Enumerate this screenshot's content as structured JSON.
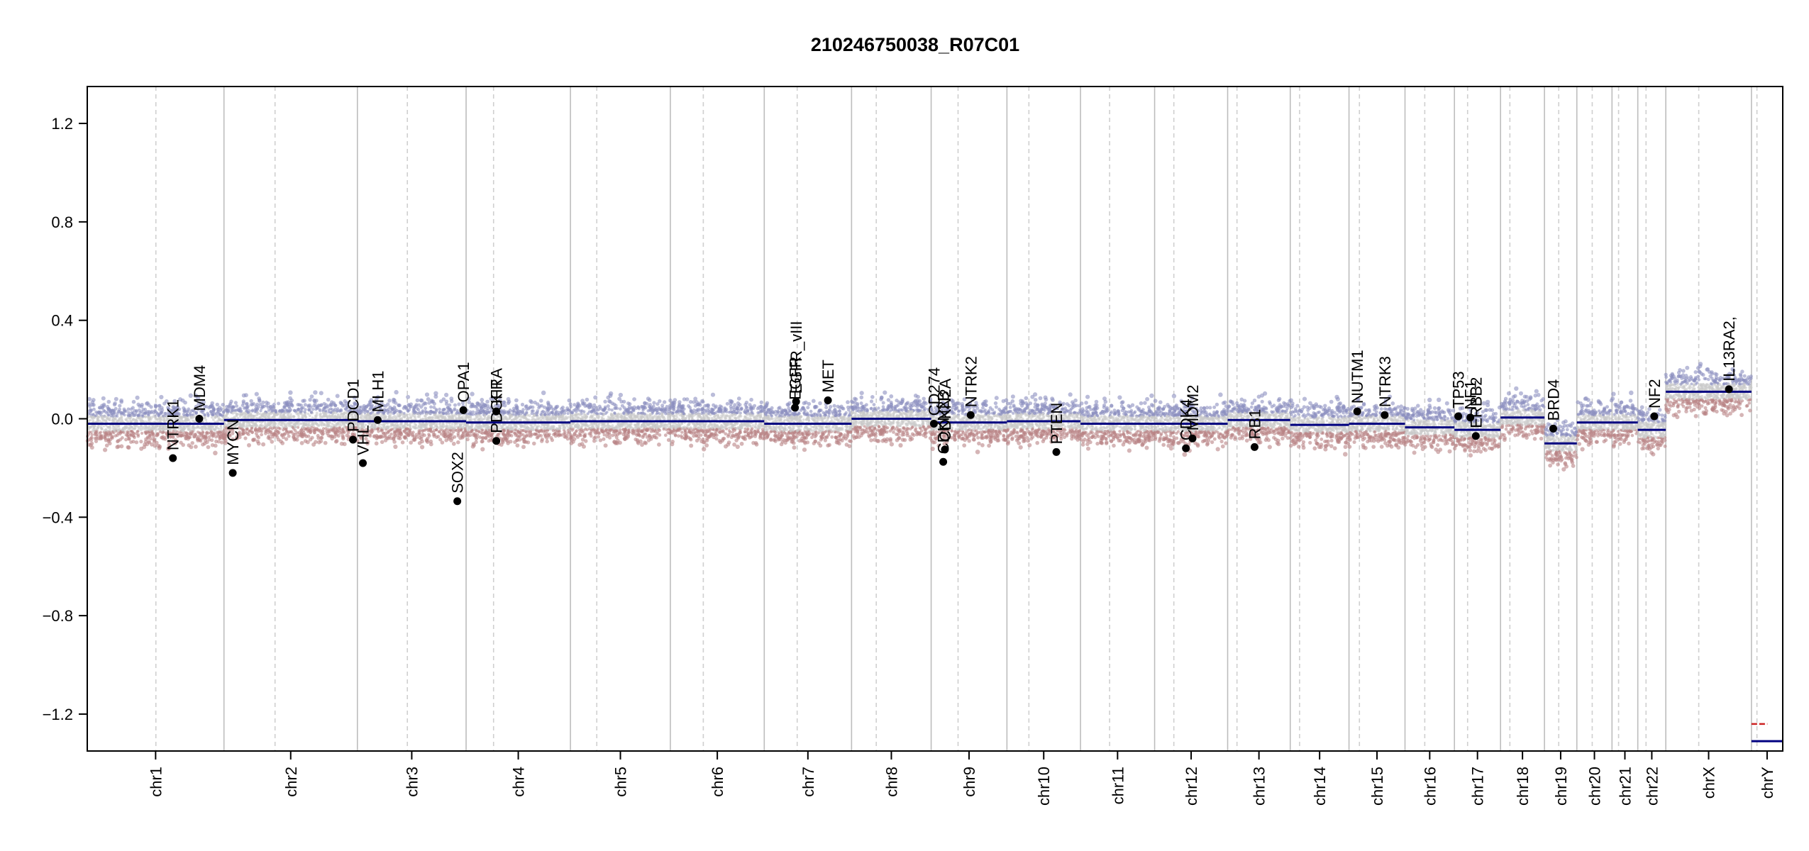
{
  "chart_data": {
    "type": "scatter",
    "title": "210246750038_R07C01",
    "xlabel": "",
    "ylabel": "",
    "ylim": [
      -1.35,
      1.35
    ],
    "yticks": [
      1.2,
      0.8,
      0.4,
      0.0,
      -0.4,
      -0.8,
      -1.2
    ],
    "ytick_labels": [
      "1.2",
      "0.8",
      "0.4",
      "0.0",
      "−0.4",
      "−0.8",
      "−1.2"
    ],
    "grid": false,
    "colors": {
      "gain": "#8c8fc0",
      "loss": "#b98486",
      "neutral": "#c9c9c9",
      "segment": "#000080",
      "gene_point": "#000000",
      "chrom_line": "#bdbdbd",
      "centromere_line": "#cfcfcf",
      "chrY_gain_tick": "#cc2222"
    },
    "chromosomes": [
      {
        "name": "chr1",
        "start": 0,
        "end": 249,
        "centromere": 125
      },
      {
        "name": "chr2",
        "start": 249,
        "end": 492,
        "centromere": 93
      },
      {
        "name": "chr3",
        "start": 492,
        "end": 690,
        "centromere": 91
      },
      {
        "name": "chr4",
        "start": 690,
        "end": 880,
        "centromere": 50
      },
      {
        "name": "chr5",
        "start": 880,
        "end": 1062,
        "centromere": 48
      },
      {
        "name": "chr6",
        "start": 1062,
        "end": 1233,
        "centromere": 60
      },
      {
        "name": "chr7",
        "start": 1233,
        "end": 1392,
        "centromere": 60
      },
      {
        "name": "chr8",
        "start": 1392,
        "end": 1537,
        "centromere": 45
      },
      {
        "name": "chr9",
        "start": 1537,
        "end": 1675,
        "centromere": 49
      },
      {
        "name": "chr10",
        "start": 1675,
        "end": 1809,
        "centromere": 40
      },
      {
        "name": "chr11",
        "start": 1809,
        "end": 1944,
        "centromere": 53
      },
      {
        "name": "chr12",
        "start": 1944,
        "end": 2077,
        "centromere": 35
      },
      {
        "name": "chr13",
        "start": 2077,
        "end": 2191,
        "centromere": 17
      },
      {
        "name": "chr14",
        "start": 2191,
        "end": 2298,
        "centromere": 17
      },
      {
        "name": "chr15",
        "start": 2298,
        "end": 2400,
        "centromere": 19
      },
      {
        "name": "chr16",
        "start": 2400,
        "end": 2490,
        "centromere": 36
      },
      {
        "name": "chr17",
        "start": 2490,
        "end": 2574,
        "centromere": 24
      },
      {
        "name": "chr18",
        "start": 2574,
        "end": 2654,
        "centromere": 17
      },
      {
        "name": "chr19",
        "start": 2654,
        "end": 2713,
        "centromere": 26
      },
      {
        "name": "chr20",
        "start": 2713,
        "end": 2777,
        "centromere": 28
      },
      {
        "name": "chr21",
        "start": 2777,
        "end": 2824,
        "centromere": 12
      },
      {
        "name": "chr22",
        "start": 2824,
        "end": 2875,
        "centromere": 15
      },
      {
        "name": "chrX",
        "start": 2875,
        "end": 3031,
        "centromere": 60
      },
      {
        "name": "chrY",
        "start": 3031,
        "end": 3088,
        "centromere": 10
      }
    ],
    "segments": [
      {
        "start": 0,
        "end": 249,
        "y": -0.02
      },
      {
        "start": 249,
        "end": 492,
        "y": -0.005
      },
      {
        "start": 492,
        "end": 690,
        "y": -0.01
      },
      {
        "start": 690,
        "end": 880,
        "y": -0.015
      },
      {
        "start": 880,
        "end": 1062,
        "y": -0.01
      },
      {
        "start": 1062,
        "end": 1233,
        "y": -0.01
      },
      {
        "start": 1233,
        "end": 1392,
        "y": -0.02
      },
      {
        "start": 1392,
        "end": 1537,
        "y": 0.0
      },
      {
        "start": 1537,
        "end": 1675,
        "y": -0.015
      },
      {
        "start": 1675,
        "end": 1809,
        "y": -0.01
      },
      {
        "start": 1809,
        "end": 1944,
        "y": -0.02
      },
      {
        "start": 1944,
        "end": 2077,
        "y": -0.02
      },
      {
        "start": 2077,
        "end": 2191,
        "y": -0.005
      },
      {
        "start": 2191,
        "end": 2298,
        "y": -0.025
      },
      {
        "start": 2298,
        "end": 2400,
        "y": -0.02
      },
      {
        "start": 2400,
        "end": 2490,
        "y": -0.035
      },
      {
        "start": 2490,
        "end": 2574,
        "y": -0.045
      },
      {
        "start": 2574,
        "end": 2654,
        "y": 0.005
      },
      {
        "start": 2654,
        "end": 2713,
        "y": -0.1
      },
      {
        "start": 2713,
        "end": 2777,
        "y": -0.015
      },
      {
        "start": 2777,
        "end": 2824,
        "y": -0.015
      },
      {
        "start": 2824,
        "end": 2875,
        "y": -0.045
      },
      {
        "start": 2875,
        "end": 3031,
        "y": 0.11
      },
      {
        "start": 3031,
        "end": 3088,
        "y": -1.31
      }
    ],
    "chrY_gain_tick": {
      "start": 3031,
      "end": 3060,
      "y": -1.24
    },
    "genes": [
      {
        "name": "NTRK1",
        "x": 156,
        "y": -0.16
      },
      {
        "name": "MDM4",
        "x": 204,
        "y": 0.0
      },
      {
        "name": "MYCN",
        "x": 265,
        "y": -0.22
      },
      {
        "name": "PDCD1",
        "x": 484,
        "y": -0.085
      },
      {
        "name": "VHL",
        "x": 502,
        "y": -0.18
      },
      {
        "name": "MLH1",
        "x": 529,
        "y": -0.005
      },
      {
        "name": "SOX2",
        "x": 674,
        "y": -0.335
      },
      {
        "name": "OPA1",
        "x": 685,
        "y": 0.035
      },
      {
        "name": "KIT",
        "x": 745,
        "y": 0.03
      },
      {
        "name": "PDGFRA",
        "x": 745,
        "y": -0.09
      },
      {
        "name": "EGFR",
        "x": 1289,
        "y": 0.045
      },
      {
        "name": "EGFR_vIII",
        "x": 1291,
        "y": 0.07
      },
      {
        "name": "MET",
        "x": 1349,
        "y": 0.075
      },
      {
        "name": "CD274",
        "x": 1542,
        "y": -0.02
      },
      {
        "name": "CDKN2B",
        "x": 1559,
        "y": -0.175
      },
      {
        "name": "CDKN2A",
        "x": 1562,
        "y": -0.125
      },
      {
        "name": "NTRK2",
        "x": 1609,
        "y": 0.015
      },
      {
        "name": "PTEN",
        "x": 1765,
        "y": -0.135
      },
      {
        "name": "CDK4",
        "x": 2001,
        "y": -0.12
      },
      {
        "name": "MDM2",
        "x": 2013,
        "y": -0.08
      },
      {
        "name": "RB1",
        "x": 2126,
        "y": -0.115
      },
      {
        "name": "NUTM1",
        "x": 2313,
        "y": 0.03
      },
      {
        "name": "NTRK3",
        "x": 2363,
        "y": 0.015
      },
      {
        "name": "TP53",
        "x": 2497,
        "y": 0.01
      },
      {
        "name": "NF1",
        "x": 2519,
        "y": 0.005
      },
      {
        "name": "ERBB2",
        "x": 2529,
        "y": -0.07
      },
      {
        "name": "BRD4",
        "x": 2670,
        "y": -0.04
      },
      {
        "name": "NF2",
        "x": 2854,
        "y": 0.01
      },
      {
        "name": "IL13RA2, ",
        "x": 2990,
        "y": 0.12
      }
    ]
  }
}
